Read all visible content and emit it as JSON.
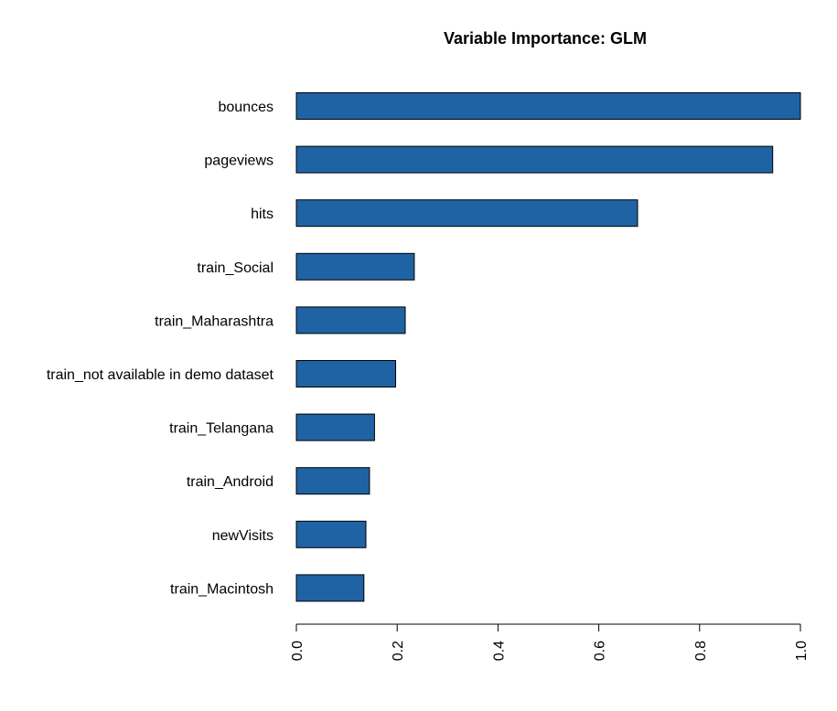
{
  "chart_data": {
    "type": "bar",
    "orientation": "horizontal",
    "title": "Variable Importance: GLM",
    "xlabel": "",
    "ylabel": "",
    "categories": [
      "bounces",
      "pageviews",
      "hits",
      "train_Social",
      "train_Maharashtra",
      "train_not available in demo dataset",
      "train_Telangana",
      "train_Android",
      "newVisits",
      "train_Macintosh"
    ],
    "values": [
      1.0,
      0.945,
      0.677,
      0.234,
      0.216,
      0.197,
      0.155,
      0.145,
      0.138,
      0.134
    ],
    "xlim": [
      0,
      1.0
    ],
    "ticks": [
      0.0,
      0.2,
      0.4,
      0.6,
      0.8,
      1.0
    ],
    "tick_labels": [
      "0.0",
      "0.2",
      "0.4",
      "0.6",
      "0.8",
      "1.0"
    ],
    "grid": false,
    "legend": "none",
    "bar_color": "#1f63a5",
    "bar_border_color": "#000000"
  }
}
